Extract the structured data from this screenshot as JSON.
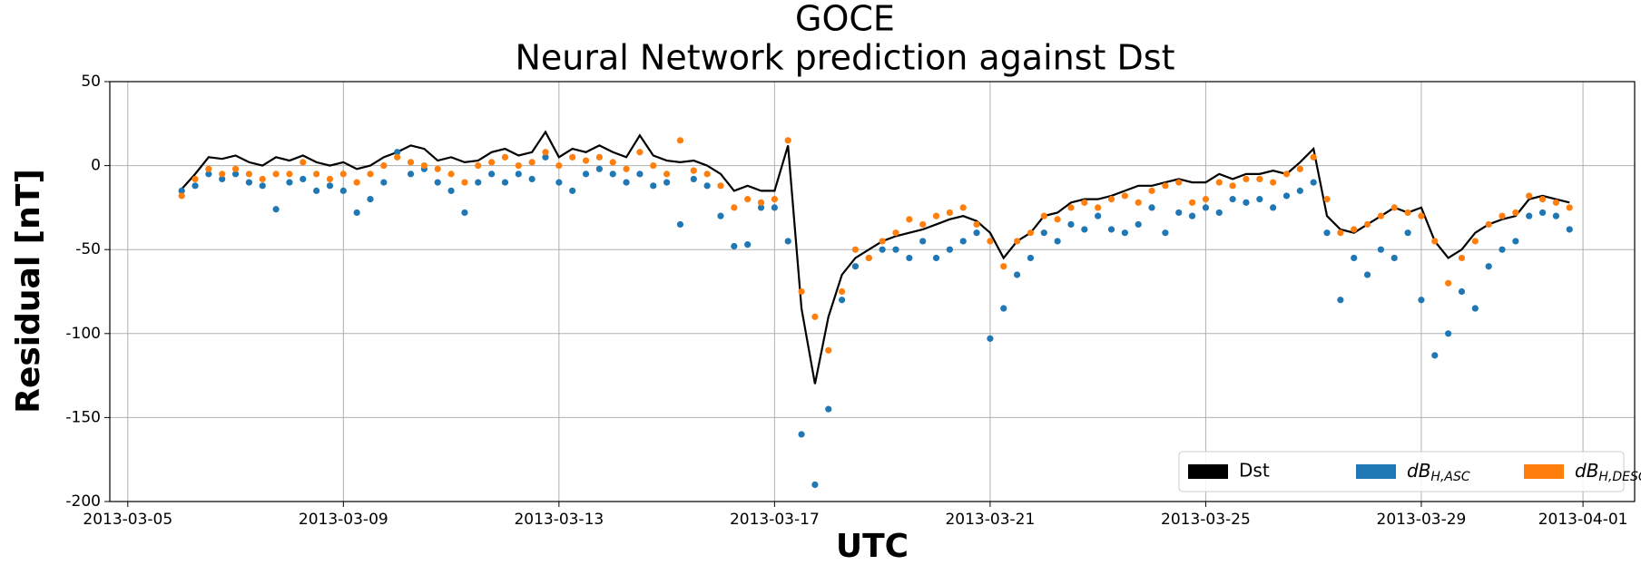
{
  "chart_data": {
    "type": "line-scatter",
    "title": "GOCE",
    "subtitle": "Neural Network prediction against Dst",
    "x_label": "UTC",
    "y_label": "Residual [nT]",
    "x": [
      "2013-03-06T00:00",
      "2013-03-06T06:00",
      "2013-03-06T12:00",
      "2013-03-06T18:00",
      "2013-03-07T00:00",
      "2013-03-07T06:00",
      "2013-03-07T12:00",
      "2013-03-07T18:00",
      "2013-03-08T00:00",
      "2013-03-08T06:00",
      "2013-03-08T12:00",
      "2013-03-08T18:00",
      "2013-03-09T00:00",
      "2013-03-09T06:00",
      "2013-03-09T12:00",
      "2013-03-09T18:00",
      "2013-03-10T00:00",
      "2013-03-10T06:00",
      "2013-03-10T12:00",
      "2013-03-10T18:00",
      "2013-03-11T00:00",
      "2013-03-11T06:00",
      "2013-03-11T12:00",
      "2013-03-11T18:00",
      "2013-03-12T00:00",
      "2013-03-12T06:00",
      "2013-03-12T12:00",
      "2013-03-12T18:00",
      "2013-03-13T00:00",
      "2013-03-13T06:00",
      "2013-03-13T12:00",
      "2013-03-13T18:00",
      "2013-03-14T00:00",
      "2013-03-14T06:00",
      "2013-03-14T12:00",
      "2013-03-14T18:00",
      "2013-03-15T00:00",
      "2013-03-15T06:00",
      "2013-03-15T12:00",
      "2013-03-15T18:00",
      "2013-03-16T00:00",
      "2013-03-16T06:00",
      "2013-03-16T12:00",
      "2013-03-16T18:00",
      "2013-03-17T00:00",
      "2013-03-17T06:00",
      "2013-03-17T12:00",
      "2013-03-17T18:00",
      "2013-03-18T00:00",
      "2013-03-18T06:00",
      "2013-03-18T12:00",
      "2013-03-18T18:00",
      "2013-03-19T00:00",
      "2013-03-19T06:00",
      "2013-03-19T12:00",
      "2013-03-19T18:00",
      "2013-03-20T00:00",
      "2013-03-20T06:00",
      "2013-03-20T12:00",
      "2013-03-20T18:00",
      "2013-03-21T00:00",
      "2013-03-21T06:00",
      "2013-03-21T12:00",
      "2013-03-21T18:00",
      "2013-03-22T00:00",
      "2013-03-22T06:00",
      "2013-03-22T12:00",
      "2013-03-22T18:00",
      "2013-03-23T00:00",
      "2013-03-23T06:00",
      "2013-03-23T12:00",
      "2013-03-23T18:00",
      "2013-03-24T00:00",
      "2013-03-24T06:00",
      "2013-03-24T12:00",
      "2013-03-24T18:00",
      "2013-03-25T00:00",
      "2013-03-25T06:00",
      "2013-03-25T12:00",
      "2013-03-25T18:00",
      "2013-03-26T00:00",
      "2013-03-26T06:00",
      "2013-03-26T12:00",
      "2013-03-26T18:00",
      "2013-03-27T00:00",
      "2013-03-27T06:00",
      "2013-03-27T12:00",
      "2013-03-27T18:00",
      "2013-03-28T00:00",
      "2013-03-28T06:00",
      "2013-03-28T12:00",
      "2013-03-28T18:00",
      "2013-03-29T00:00",
      "2013-03-29T06:00",
      "2013-03-29T12:00",
      "2013-03-29T18:00",
      "2013-03-30T00:00",
      "2013-03-30T06:00",
      "2013-03-30T12:00",
      "2013-03-30T18:00",
      "2013-03-31T00:00",
      "2013-03-31T06:00",
      "2013-03-31T12:00",
      "2013-03-31T18:00"
    ],
    "series": [
      {
        "name": "Dst",
        "color": "#000000",
        "kind": "line",
        "values": [
          -14,
          -5,
          5,
          4,
          6,
          2,
          0,
          5,
          3,
          6,
          2,
          0,
          2,
          -2,
          0,
          5,
          8,
          12,
          10,
          3,
          5,
          2,
          3,
          8,
          10,
          6,
          8,
          20,
          5,
          10,
          8,
          12,
          8,
          5,
          18,
          6,
          3,
          2,
          3,
          0,
          -5,
          -15,
          -12,
          -15,
          -15,
          12,
          -85,
          -130,
          -90,
          -65,
          -55,
          -50,
          -45,
          -42,
          -40,
          -38,
          -35,
          -32,
          -30,
          -33,
          -40,
          -55,
          -45,
          -40,
          -30,
          -28,
          -22,
          -20,
          -20,
          -18,
          -15,
          -12,
          -12,
          -10,
          -8,
          -10,
          -10,
          -5,
          -8,
          -5,
          -5,
          -3,
          -5,
          2,
          10,
          -30,
          -38,
          -40,
          -35,
          -30,
          -25,
          -28,
          -25,
          -45,
          -55,
          -50,
          -40,
          -35,
          -32,
          -30,
          -20,
          -18,
          -20,
          -22
        ]
      },
      {
        "name": "dBH,ASC",
        "color": "#1f77b4",
        "kind": "scatter",
        "values": [
          -15,
          -12,
          -5,
          -8,
          -5,
          -10,
          -12,
          -26,
          -10,
          -8,
          -15,
          -12,
          -15,
          -28,
          -20,
          -10,
          8,
          -5,
          -2,
          -10,
          -15,
          -28,
          -10,
          -5,
          -10,
          -5,
          -8,
          5,
          -10,
          -15,
          -5,
          -2,
          -5,
          -10,
          -5,
          -12,
          -10,
          -35,
          -8,
          -12,
          -30,
          -48,
          -47,
          -25,
          -25,
          -45,
          -160,
          -190,
          -145,
          -80,
          -60,
          -55,
          -50,
          -50,
          -55,
          -45,
          -55,
          -50,
          -45,
          -40,
          -103,
          -85,
          -65,
          -55,
          -40,
          -45,
          -35,
          -38,
          -30,
          -38,
          -40,
          -35,
          -25,
          -40,
          -28,
          -30,
          -25,
          -28,
          -20,
          -22,
          -20,
          -25,
          -18,
          -15,
          -10,
          -40,
          -80,
          -55,
          -65,
          -50,
          -55,
          -40,
          -80,
          -113,
          -100,
          -75,
          -85,
          -60,
          -50,
          -45,
          -30,
          -28,
          -30,
          -38
        ]
      },
      {
        "name": "dBH,DESC",
        "color": "#ff7f0e",
        "kind": "scatter",
        "values": [
          -18,
          -8,
          -2,
          -5,
          -2,
          -5,
          -8,
          -5,
          -5,
          2,
          -5,
          -8,
          -5,
          -10,
          -5,
          0,
          5,
          2,
          0,
          -2,
          -5,
          -10,
          0,
          2,
          5,
          0,
          2,
          8,
          0,
          5,
          3,
          5,
          2,
          -2,
          8,
          0,
          -5,
          15,
          -3,
          -5,
          -12,
          -25,
          -20,
          -22,
          -20,
          15,
          -75,
          -90,
          -110,
          -75,
          -50,
          -55,
          -45,
          -40,
          -32,
          -35,
          -30,
          -28,
          -25,
          -35,
          -45,
          -60,
          -45,
          -40,
          -30,
          -32,
          -25,
          -22,
          -25,
          -20,
          -18,
          -22,
          -15,
          -12,
          -10,
          -22,
          -20,
          -10,
          -12,
          -8,
          -8,
          -10,
          -5,
          -2,
          5,
          -20,
          -40,
          -38,
          -35,
          -30,
          -25,
          -28,
          -30,
          -45,
          -70,
          -55,
          -45,
          -35,
          -30,
          -28,
          -18,
          -20,
          -22,
          -25
        ]
      }
    ],
    "xlim": [
      "2013-03-04T16:00",
      "2013-04-01T23:00"
    ],
    "xticks": [
      "2013-03-05",
      "2013-03-09",
      "2013-03-13",
      "2013-03-17",
      "2013-03-21",
      "2013-03-25",
      "2013-03-29",
      "2013-04-01"
    ],
    "ylim": [
      -200,
      50
    ],
    "yticks": [
      -200,
      -150,
      -100,
      -50,
      0,
      50
    ],
    "grid": true,
    "legend": "lower right"
  }
}
